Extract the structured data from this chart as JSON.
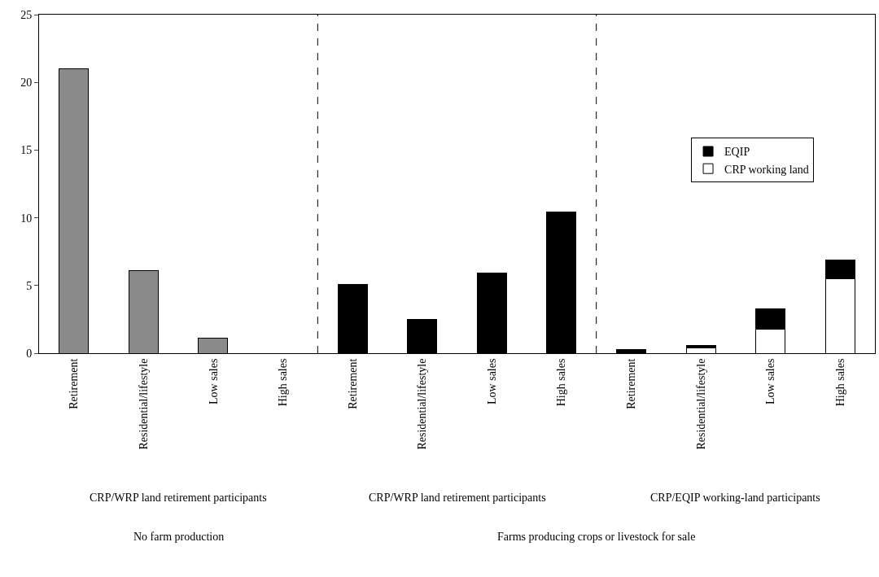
{
  "chart_data": {
    "type": "bar",
    "stacked": true,
    "categories": [
      "Retirement",
      "Residential/lifestyle",
      "Low sales",
      "High sales",
      "Retirement",
      "Residential/lifestyle",
      "Low sales",
      "High sales",
      "Retirement",
      "Residential/lifestyle",
      "Low sales",
      "High sales"
    ],
    "series": [
      {
        "colors": [
          "#8a8a8a",
          "#8a8a8a",
          "#8a8a8a",
          "#8a8a8a",
          "#000000",
          "#000000",
          "#000000",
          "#000000",
          "#000000",
          "#000000",
          "#000000",
          "#000000"
        ],
        "values": [
          21.0,
          6.1,
          1.1,
          null,
          5.1,
          2.5,
          5.9,
          10.4,
          null,
          null,
          null,
          null
        ]
      },
      {
        "name": "CRP working land",
        "color": "#ffffff",
        "values": [
          null,
          null,
          null,
          null,
          null,
          null,
          null,
          null,
          0,
          0.4,
          1.8,
          5.5
        ]
      },
      {
        "name": "EQIP",
        "color": "#000000",
        "values": [
          null,
          null,
          null,
          null,
          null,
          null,
          null,
          null,
          0.3,
          0.2,
          1.5,
          1.4
        ]
      }
    ],
    "ylim": [
      0,
      25
    ],
    "yticks": [
      0,
      5,
      10,
      15,
      20,
      25
    ],
    "legend": "right",
    "annotations": [
      "CRP/WRP land retirement participants",
      "CRP/WRP land retirement participants",
      "CRP/EQIP working-land participants",
      "No farm production",
      "Farms producing crops or livestock for sale"
    ]
  }
}
